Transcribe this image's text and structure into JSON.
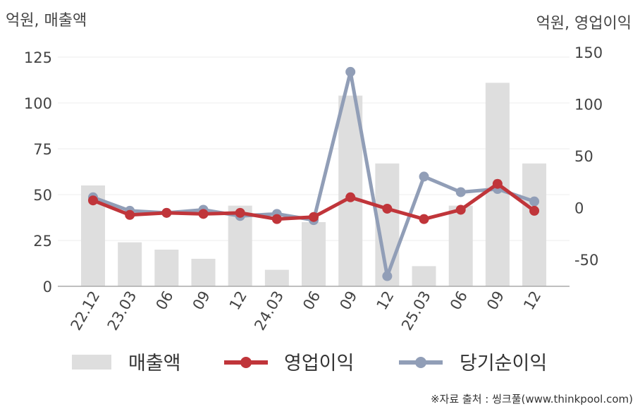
{
  "chart_data": {
    "type": "bar+line",
    "left_axis_title": "억원, 매출액",
    "right_axis_title": "억원, 영업이익",
    "categories": [
      "22.12",
      "23.03",
      "06",
      "09",
      "12",
      "24.03",
      "06",
      "09",
      "12",
      "25.03",
      "06",
      "09",
      "12"
    ],
    "left_ylim": [
      0,
      125
    ],
    "left_ticks": [
      0,
      25,
      50,
      75,
      100,
      125
    ],
    "right_ylim": [
      -77,
      150
    ],
    "right_ticks": [
      -50,
      0,
      50,
      100,
      150
    ],
    "grid": true,
    "legend_position": "bottom",
    "series": [
      {
        "name": "매출액",
        "type": "bar",
        "axis": "left",
        "color": "#dedede",
        "values": [
          55,
          24,
          20,
          15,
          44,
          9,
          35,
          104,
          67,
          11,
          44,
          111,
          67
        ]
      },
      {
        "name": "영업이익",
        "type": "line",
        "axis": "right",
        "color": "#c0353a",
        "values": [
          7,
          -7,
          -5,
          -6,
          -5,
          -11,
          -9,
          10,
          -1,
          -11,
          -2,
          23,
          -3
        ]
      },
      {
        "name": "당기순이익",
        "type": "line",
        "axis": "right",
        "color": "#919eb7",
        "values": [
          10,
          -3,
          -5,
          -2,
          -8,
          -6,
          -12,
          131,
          -66,
          30,
          15,
          18,
          6
        ]
      }
    ]
  },
  "source_text": "※자료 출처 : 씽크풀(www.thinkpool.com)"
}
